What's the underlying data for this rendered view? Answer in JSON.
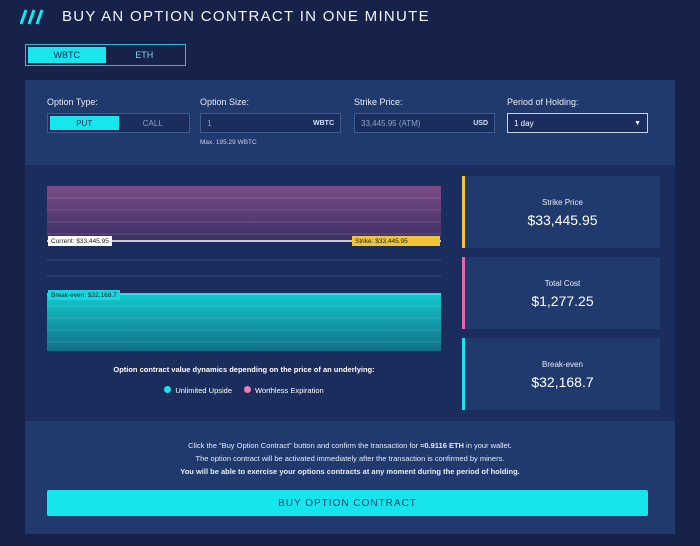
{
  "header": {
    "title": "BUY AN OPTION CONTRACT IN ONE MINUTE"
  },
  "asset_tabs": [
    "WBTC",
    "ETH"
  ],
  "form": {
    "option_type": {
      "label": "Option Type:",
      "options": [
        "PUT",
        "CALL"
      ]
    },
    "option_size": {
      "label": "Option Size:",
      "value": "1",
      "unit": "WBTC",
      "hint": "Max. 195.29 WBTC"
    },
    "strike_price": {
      "label": "Strike Price:",
      "value": "33,445.95 (ATM)",
      "unit": "USD"
    },
    "period": {
      "label": "Period of Holding:",
      "value": "1 day"
    }
  },
  "chart": {
    "current_label": "Current: $33,445.95",
    "strike_label": "Strike: $33,445.95",
    "breakeven_label": "Break-even: $32,168.7",
    "caption": "Option contract value dynamics depending on the price of an underlying:",
    "legend": [
      "Unlimited Upside",
      "Worthless Expiration"
    ]
  },
  "stats": [
    {
      "label": "Strike Price",
      "value": "$33,445.95"
    },
    {
      "label": "Total Cost",
      "value": "$1,277.25"
    },
    {
      "label": "Break-even",
      "value": "$32,168.7"
    }
  ],
  "notice": {
    "line1_before": "Click the \"Buy Option Contract\" button and confirm the transaction for ",
    "line1_amount": "≈0.9116 ETH",
    "line1_after": " in your wallet.",
    "line2": "The option contract will be activated immediately after the transaction is confirmed by miners.",
    "line3": "You will be able to exercise your options contracts at any moment during the period of holding."
  },
  "button": "BUY OPTION CONTRACT"
}
